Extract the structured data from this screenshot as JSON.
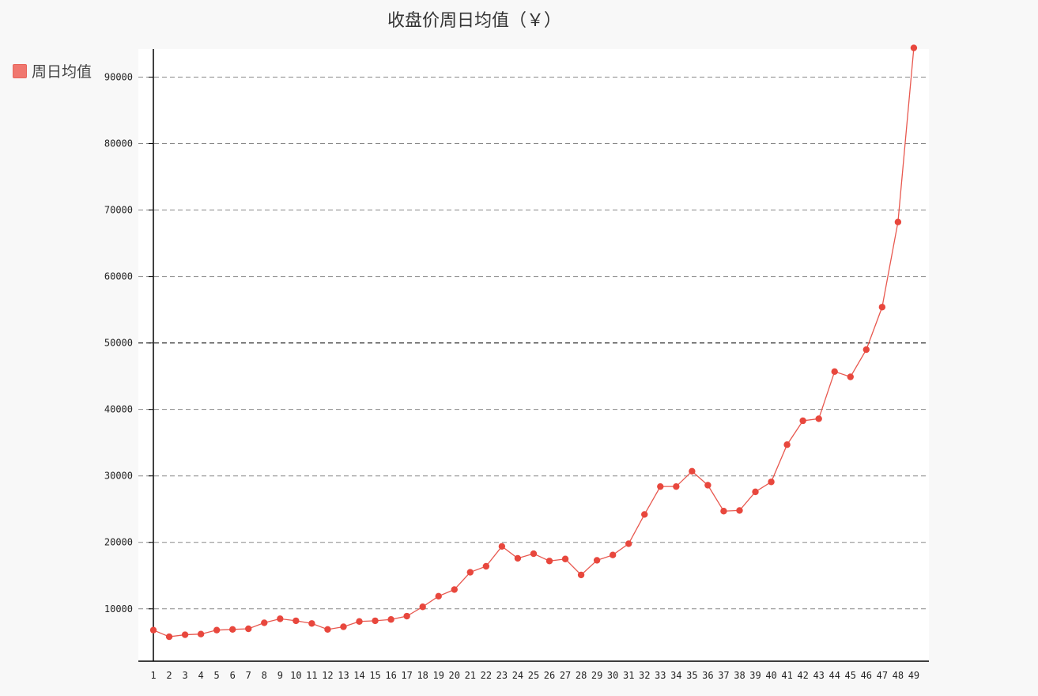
{
  "colors": {
    "page_background": "#f8f8f8",
    "plot_background": "#ffffff",
    "series": "#e8473d",
    "line": "#e8584f",
    "legend_swatch": "#f0776f",
    "grid": "#888888",
    "highlight_grid": "#222222"
  },
  "chart_data": {
    "type": "line",
    "title": "收盘价周日均值（￥）",
    "xlabel": "",
    "ylabel": "",
    "legend_position": "top-left",
    "grid": true,
    "ylim": [
      4000,
      96000
    ],
    "yticks": [
      10000,
      20000,
      30000,
      40000,
      50000,
      60000,
      70000,
      80000,
      90000
    ],
    "highlight_ytick": 50000,
    "x": [
      1,
      2,
      3,
      4,
      5,
      6,
      7,
      8,
      9,
      10,
      11,
      12,
      13,
      14,
      15,
      16,
      17,
      18,
      19,
      20,
      21,
      22,
      23,
      24,
      25,
      26,
      27,
      28,
      29,
      30,
      31,
      32,
      33,
      34,
      35,
      36,
      37,
      38,
      39,
      40,
      41,
      42,
      43,
      44,
      45,
      46,
      47,
      48,
      49
    ],
    "series": [
      {
        "name": "周日均值",
        "values": [
          6800,
          5800,
          6100,
          6200,
          6800,
          6900,
          7000,
          7900,
          8500,
          8200,
          7800,
          6900,
          7300,
          8100,
          8200,
          8400,
          8900,
          10300,
          11900,
          12900,
          15500,
          16400,
          19400,
          17600,
          18300,
          17200,
          17500,
          15100,
          17300,
          18100,
          19800,
          24200,
          28400,
          28400,
          30700,
          28600,
          24700,
          24800,
          27600,
          29100,
          34700,
          38300,
          38600,
          45700,
          44900,
          49000,
          55400,
          68200,
          94400
        ]
      }
    ]
  }
}
